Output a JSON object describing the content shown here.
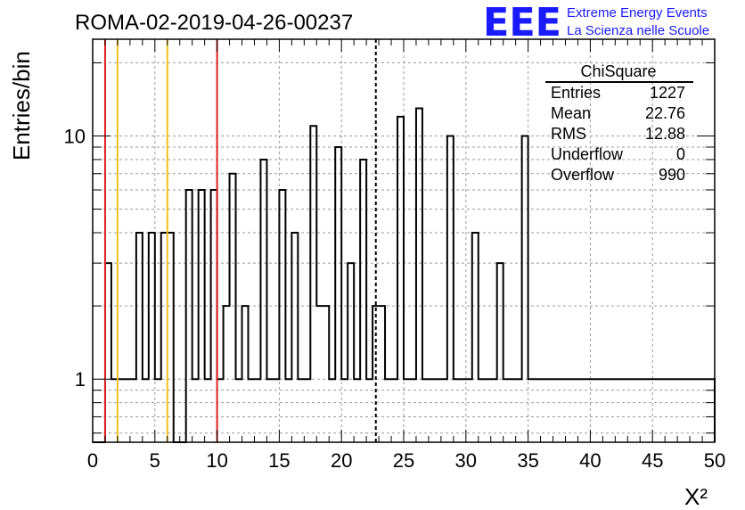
{
  "title": "ROMA-02-2019-04-26-00237",
  "logo": {
    "mark": "EEE",
    "line1": "Extreme Energy Events",
    "line2": "La Scienza nelle Scuole",
    "color": "#1a1aff"
  },
  "stats": {
    "name": "ChiSquare",
    "rows": [
      {
        "label": "Entries",
        "value": "1227"
      },
      {
        "label": "Mean",
        "value": "22.76"
      },
      {
        "label": "RMS",
        "value": "12.88"
      },
      {
        "label": "Underflow",
        "value": "0"
      },
      {
        "label": "Overflow",
        "value": "990"
      }
    ]
  },
  "chart_data": {
    "type": "histogram",
    "title": "ROMA-02-2019-04-26-00237",
    "xlabel": "X²",
    "ylabel": "Entries/bin",
    "xlim": [
      0,
      50
    ],
    "ylim": [
      0.55,
      25
    ],
    "yscale": "log",
    "grid": true,
    "bin_width": 0.5,
    "bin_start": 0,
    "xticks": [
      "0",
      "5",
      "10",
      "15",
      "20",
      "25",
      "30",
      "35",
      "40",
      "45",
      "50"
    ],
    "yticks": [
      "1",
      "10"
    ],
    "values": [
      0,
      0,
      3,
      1,
      1,
      1,
      1,
      4,
      1,
      4,
      1,
      4,
      4,
      0,
      0,
      6,
      1,
      6,
      1,
      6,
      1,
      2,
      7,
      1,
      2,
      1,
      1,
      8,
      1,
      1,
      6,
      1,
      4,
      1,
      1,
      11,
      2,
      2,
      1,
      9,
      1,
      3,
      1,
      8,
      1,
      2,
      2,
      1,
      1,
      12,
      1,
      1,
      13,
      1,
      1,
      1,
      1,
      10,
      1,
      1,
      1,
      4,
      1,
      1,
      1,
      3,
      1,
      1,
      1,
      10,
      1,
      1,
      1,
      1,
      1,
      1,
      1,
      1,
      1,
      1,
      1,
      1,
      1,
      1,
      1,
      1,
      1,
      1,
      1,
      1,
      1,
      1,
      1,
      1,
      1,
      1,
      1,
      1,
      1,
      1
    ],
    "ref_lines": [
      {
        "x": 1.0,
        "color": "#e02020",
        "style": "solid"
      },
      {
        "x": 2.0,
        "color": "#f0c020",
        "style": "solid"
      },
      {
        "x": 6.0,
        "color": "#f0c020",
        "style": "solid"
      },
      {
        "x": 10.0,
        "color": "#e02020",
        "style": "solid"
      },
      {
        "x": 22.76,
        "color": "#000000",
        "style": "dashed"
      }
    ]
  }
}
